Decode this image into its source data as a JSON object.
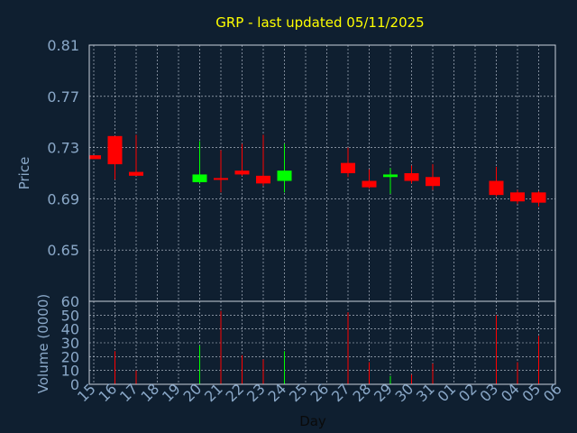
{
  "chart_data": {
    "type": "candlestick",
    "title": "GRP - last updated 05/11/2025",
    "ylabel": "Price",
    "volume_ylabel": "Volume (0000)",
    "xlabel": "Day",
    "x_ticks": [
      "15",
      "16",
      "17",
      "18",
      "19",
      "20",
      "21",
      "22",
      "23",
      "24",
      "25",
      "26",
      "27",
      "28",
      "29",
      "30",
      "31",
      "01",
      "02",
      "03",
      "04",
      "05",
      "06"
    ],
    "price_ylim": [
      0.61,
      0.81
    ],
    "price_ticks": [
      "0.81",
      "0.77",
      "0.73",
      "0.69",
      "0.65"
    ],
    "volume_ylim": [
      0,
      60
    ],
    "volume_ticks": [
      "60",
      "50",
      "40",
      "30",
      "20",
      "10",
      "0"
    ],
    "grid": true,
    "colors": {
      "background": "#0f1f30",
      "plot_border": "#c8d0dc",
      "grid": "#c8d0dc",
      "title": "#ffff00",
      "axis_text": "#8aa8c8",
      "up": "#00ff00",
      "down": "#ff0000"
    },
    "candles": [
      {
        "day": "15",
        "open": 0.724,
        "high": 0.724,
        "low": 0.721,
        "close": 0.721
      },
      {
        "day": "16",
        "open": 0.739,
        "high": 0.739,
        "low": 0.705,
        "close": 0.717
      },
      {
        "day": "17",
        "open": 0.711,
        "high": 0.74,
        "low": 0.708,
        "close": 0.708
      },
      {
        "day": "20",
        "open": 0.703,
        "high": 0.735,
        "low": 0.702,
        "close": 0.709
      },
      {
        "day": "21",
        "open": 0.706,
        "high": 0.728,
        "low": 0.695,
        "close": 0.705
      },
      {
        "day": "22",
        "open": 0.712,
        "high": 0.733,
        "low": 0.708,
        "close": 0.709
      },
      {
        "day": "23",
        "open": 0.708,
        "high": 0.74,
        "low": 0.7,
        "close": 0.702
      },
      {
        "day": "24",
        "open": 0.704,
        "high": 0.733,
        "low": 0.695,
        "close": 0.712
      },
      {
        "day": "27",
        "open": 0.718,
        "high": 0.73,
        "low": 0.707,
        "close": 0.71
      },
      {
        "day": "28",
        "open": 0.704,
        "high": 0.713,
        "low": 0.698,
        "close": 0.699
      },
      {
        "day": "29",
        "open": 0.707,
        "high": 0.714,
        "low": 0.694,
        "close": 0.709
      },
      {
        "day": "30",
        "open": 0.71,
        "high": 0.716,
        "low": 0.702,
        "close": 0.704
      },
      {
        "day": "31",
        "open": 0.707,
        "high": 0.717,
        "low": 0.697,
        "close": 0.7
      },
      {
        "day": "03",
        "open": 0.704,
        "high": 0.715,
        "low": 0.692,
        "close": 0.693
      },
      {
        "day": "04",
        "open": 0.695,
        "high": 0.697,
        "low": 0.686,
        "close": 0.688
      },
      {
        "day": "05",
        "open": 0.695,
        "high": 0.696,
        "low": 0.684,
        "close": 0.687
      }
    ],
    "volume": [
      {
        "day": "15",
        "value": 0,
        "direction": "down"
      },
      {
        "day": "16",
        "value": 24,
        "direction": "down"
      },
      {
        "day": "17",
        "value": 10,
        "direction": "down"
      },
      {
        "day": "20",
        "value": 28,
        "direction": "up"
      },
      {
        "day": "21",
        "value": 53,
        "direction": "down"
      },
      {
        "day": "22",
        "value": 21,
        "direction": "down"
      },
      {
        "day": "23",
        "value": 18,
        "direction": "down"
      },
      {
        "day": "24",
        "value": 24,
        "direction": "up"
      },
      {
        "day": "27",
        "value": 52,
        "direction": "down"
      },
      {
        "day": "28",
        "value": 16,
        "direction": "down"
      },
      {
        "day": "29",
        "value": 6,
        "direction": "up"
      },
      {
        "day": "30",
        "value": 7,
        "direction": "down"
      },
      {
        "day": "31",
        "value": 15,
        "direction": "down"
      },
      {
        "day": "03",
        "value": 50,
        "direction": "down"
      },
      {
        "day": "04",
        "value": 16,
        "direction": "down"
      },
      {
        "day": "05",
        "value": 35,
        "direction": "down"
      }
    ]
  }
}
